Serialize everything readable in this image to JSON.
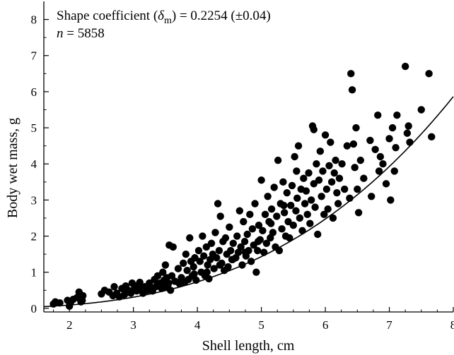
{
  "chart_data": {
    "type": "scatter",
    "xlabel": "Shell length, cm",
    "ylabel": "Body wet mass, g",
    "xlim": [
      1.6,
      8.0
    ],
    "ylim": [
      -0.1,
      8.5
    ],
    "xticks": [
      2,
      3,
      4,
      5,
      6,
      7,
      8
    ],
    "yticks": [
      0,
      1,
      2,
      3,
      4,
      5,
      6,
      7,
      8
    ],
    "grid": false,
    "annotations": [
      {
        "prefix": "Shape coefficient (",
        "symbol": "δ",
        "subscript": "m",
        "suffix": ") = 0.2254 (±0.04)"
      },
      {
        "italic": "n",
        "rest": " = 5858"
      }
    ],
    "fit_curve": {
      "form": "y = (0.2254 * x)^3",
      "coefficient": 0.2254,
      "exponent": 3
    },
    "series": [
      {
        "marker": "filled-circle",
        "color": "#000000",
        "points": [
          [
            1.75,
            0.12
          ],
          [
            1.78,
            0.18
          ],
          [
            1.85,
            0.15
          ],
          [
            1.97,
            0.22
          ],
          [
            2.0,
            0.06
          ],
          [
            2.03,
            0.2
          ],
          [
            2.06,
            0.25
          ],
          [
            2.12,
            0.3
          ],
          [
            2.15,
            0.45
          ],
          [
            2.18,
            0.18
          ],
          [
            2.21,
            0.35
          ],
          [
            2.2,
            0.22
          ],
          [
            2.5,
            0.4
          ],
          [
            2.55,
            0.5
          ],
          [
            2.62,
            0.45
          ],
          [
            2.68,
            0.35
          ],
          [
            2.7,
            0.6
          ],
          [
            2.74,
            0.42
          ],
          [
            2.78,
            0.32
          ],
          [
            2.82,
            0.55
          ],
          [
            2.86,
            0.38
          ],
          [
            2.88,
            0.62
          ],
          [
            2.92,
            0.5
          ],
          [
            2.96,
            0.42
          ],
          [
            2.98,
            0.7
          ],
          [
            3.02,
            0.58
          ],
          [
            3.05,
            0.48
          ],
          [
            3.08,
            0.65
          ],
          [
            3.1,
            0.72
          ],
          [
            3.12,
            0.55
          ],
          [
            3.15,
            0.42
          ],
          [
            3.18,
            0.6
          ],
          [
            3.22,
            0.5
          ],
          [
            3.25,
            0.7
          ],
          [
            3.28,
            0.55
          ],
          [
            3.3,
            0.48
          ],
          [
            3.33,
            0.8
          ],
          [
            3.36,
            0.62
          ],
          [
            3.38,
            0.9
          ],
          [
            3.42,
            0.7
          ],
          [
            3.44,
            0.55
          ],
          [
            3.46,
            1.0
          ],
          [
            3.48,
            0.78
          ],
          [
            3.5,
            0.6
          ],
          [
            3.5,
            1.2
          ],
          [
            3.52,
            0.85
          ],
          [
            3.54,
            0.65
          ],
          [
            3.56,
            1.75
          ],
          [
            3.58,
            0.5
          ],
          [
            3.6,
            0.9
          ],
          [
            3.62,
            1.7
          ],
          [
            3.65,
            0.75
          ],
          [
            3.7,
            1.1
          ],
          [
            3.72,
            0.68
          ],
          [
            3.75,
            0.85
          ],
          [
            3.78,
            1.25
          ],
          [
            3.8,
            0.72
          ],
          [
            3.82,
            1.5
          ],
          [
            3.84,
            1.05
          ],
          [
            3.86,
            0.8
          ],
          [
            3.88,
            1.95
          ],
          [
            3.9,
            1.3
          ],
          [
            3.92,
            0.9
          ],
          [
            3.94,
            1.15
          ],
          [
            3.96,
            1.4
          ],
          [
            3.98,
            0.78
          ],
          [
            4.02,
            1.6
          ],
          [
            4.04,
            1.3
          ],
          [
            4.06,
            1.0
          ],
          [
            4.08,
            2.0
          ],
          [
            4.1,
            1.45
          ],
          [
            4.12,
            0.9
          ],
          [
            4.14,
            1.7
          ],
          [
            4.16,
            1.2
          ],
          [
            4.18,
            0.82
          ],
          [
            4.2,
            1.35
          ],
          [
            4.22,
            1.8
          ],
          [
            4.24,
            1.5
          ],
          [
            4.26,
            1.1
          ],
          [
            4.28,
            2.1
          ],
          [
            4.3,
            1.4
          ],
          [
            4.32,
            2.9
          ],
          [
            4.34,
            1.6
          ],
          [
            4.36,
            2.55
          ],
          [
            4.38,
            1.25
          ],
          [
            4.4,
            1.85
          ],
          [
            4.42,
            1.05
          ],
          [
            4.44,
            1.95
          ],
          [
            4.46,
            1.5
          ],
          [
            4.48,
            1.15
          ],
          [
            4.5,
            2.25
          ],
          [
            4.52,
            1.6
          ],
          [
            4.54,
            1.35
          ],
          [
            4.56,
            1.8
          ],
          [
            4.6,
            1.4
          ],
          [
            4.62,
            2.0
          ],
          [
            4.64,
            1.55
          ],
          [
            4.66,
            2.7
          ],
          [
            4.68,
            1.7
          ],
          [
            4.7,
            1.2
          ],
          [
            4.72,
            2.4
          ],
          [
            4.74,
            1.85
          ],
          [
            4.76,
            1.45
          ],
          [
            4.78,
            2.05
          ],
          [
            4.8,
            1.6
          ],
          [
            4.82,
            2.6
          ],
          [
            4.84,
            1.3
          ],
          [
            4.86,
            2.2
          ],
          [
            4.88,
            1.75
          ],
          [
            4.9,
            2.9
          ],
          [
            4.92,
            1.0
          ],
          [
            4.94,
            1.6
          ],
          [
            4.96,
            2.3
          ],
          [
            4.98,
            1.9
          ],
          [
            5.0,
            3.55
          ],
          [
            5.02,
            2.15
          ],
          [
            5.04,
            1.55
          ],
          [
            5.06,
            2.6
          ],
          [
            5.08,
            1.8
          ],
          [
            5.1,
            3.1
          ],
          [
            5.12,
            2.4
          ],
          [
            5.14,
            1.95
          ],
          [
            5.16,
            2.75
          ],
          [
            5.18,
            2.1
          ],
          [
            5.2,
            3.35
          ],
          [
            5.22,
            1.7
          ],
          [
            5.24,
            2.55
          ],
          [
            5.26,
            4.1
          ],
          [
            5.28,
            1.6
          ],
          [
            5.3,
            2.9
          ],
          [
            5.32,
            2.2
          ],
          [
            5.34,
            3.5
          ],
          [
            5.36,
            2.65
          ],
          [
            5.38,
            2.0
          ],
          [
            5.4,
            3.2
          ],
          [
            5.42,
            2.4
          ],
          [
            5.44,
            1.95
          ],
          [
            5.46,
            2.85
          ],
          [
            5.48,
            3.4
          ],
          [
            5.5,
            2.3
          ],
          [
            5.52,
            4.2
          ],
          [
            5.54,
            2.7
          ],
          [
            5.56,
            3.05
          ],
          [
            5.58,
            4.5
          ],
          [
            5.6,
            2.5
          ],
          [
            5.62,
            3.3
          ],
          [
            5.64,
            2.15
          ],
          [
            5.66,
            3.6
          ],
          [
            5.68,
            2.9
          ],
          [
            5.7,
            3.25
          ],
          [
            5.72,
            2.6
          ],
          [
            5.74,
            3.75
          ],
          [
            5.76,
            2.35
          ],
          [
            5.78,
            3.0
          ],
          [
            5.8,
            5.05
          ],
          [
            5.82,
            3.45
          ],
          [
            5.84,
            2.8
          ],
          [
            5.86,
            4.0
          ],
          [
            5.88,
            2.05
          ],
          [
            5.9,
            3.55
          ],
          [
            5.92,
            4.35
          ],
          [
            5.94,
            3.1
          ],
          [
            5.96,
            3.8
          ],
          [
            5.98,
            2.6
          ],
          [
            6.0,
            4.8
          ],
          [
            6.02,
            3.3
          ],
          [
            6.04,
            2.75
          ],
          [
            6.06,
            3.95
          ],
          [
            6.08,
            4.6
          ],
          [
            6.1,
            3.5
          ],
          [
            6.12,
            2.5
          ],
          [
            6.14,
            3.75
          ],
          [
            6.16,
            4.1
          ],
          [
            6.18,
            3.2
          ],
          [
            6.2,
            2.9
          ],
          [
            6.22,
            3.6
          ],
          [
            6.26,
            4.0
          ],
          [
            6.3,
            3.3
          ],
          [
            6.34,
            4.5
          ],
          [
            6.38,
            3.05
          ],
          [
            6.4,
            6.5
          ],
          [
            6.42,
            6.05
          ],
          [
            6.44,
            4.55
          ],
          [
            6.46,
            3.9
          ],
          [
            6.48,
            5.0
          ],
          [
            6.5,
            3.3
          ],
          [
            6.52,
            2.65
          ],
          [
            6.55,
            4.1
          ],
          [
            6.6,
            3.6
          ],
          [
            6.7,
            4.65
          ],
          [
            6.72,
            3.1
          ],
          [
            6.78,
            4.4
          ],
          [
            6.82,
            5.35
          ],
          [
            6.84,
            3.8
          ],
          [
            6.86,
            4.2
          ],
          [
            6.9,
            4.0
          ],
          [
            6.95,
            3.45
          ],
          [
            7.0,
            4.7
          ],
          [
            7.02,
            3.0
          ],
          [
            7.05,
            5.0
          ],
          [
            7.08,
            3.8
          ],
          [
            7.1,
            4.45
          ],
          [
            7.12,
            5.35
          ],
          [
            7.25,
            6.7
          ],
          [
            7.28,
            4.85
          ],
          [
            7.3,
            5.05
          ],
          [
            7.32,
            4.6
          ],
          [
            7.5,
            5.5
          ],
          [
            7.62,
            6.5
          ],
          [
            7.66,
            4.75
          ],
          [
            5.82,
            4.95
          ],
          [
            5.55,
            3.8
          ],
          [
            5.35,
            2.85
          ],
          [
            5.15,
            2.35
          ],
          [
            4.95,
            1.85
          ],
          [
            4.75,
            1.55
          ],
          [
            4.55,
            1.35
          ],
          [
            4.35,
            1.2
          ],
          [
            4.15,
            1.0
          ],
          [
            3.95,
            0.95
          ],
          [
            3.75,
            0.75
          ],
          [
            3.55,
            0.7
          ],
          [
            3.35,
            0.6
          ],
          [
            3.15,
            0.52
          ],
          [
            2.95,
            0.45
          ]
        ]
      }
    ]
  }
}
